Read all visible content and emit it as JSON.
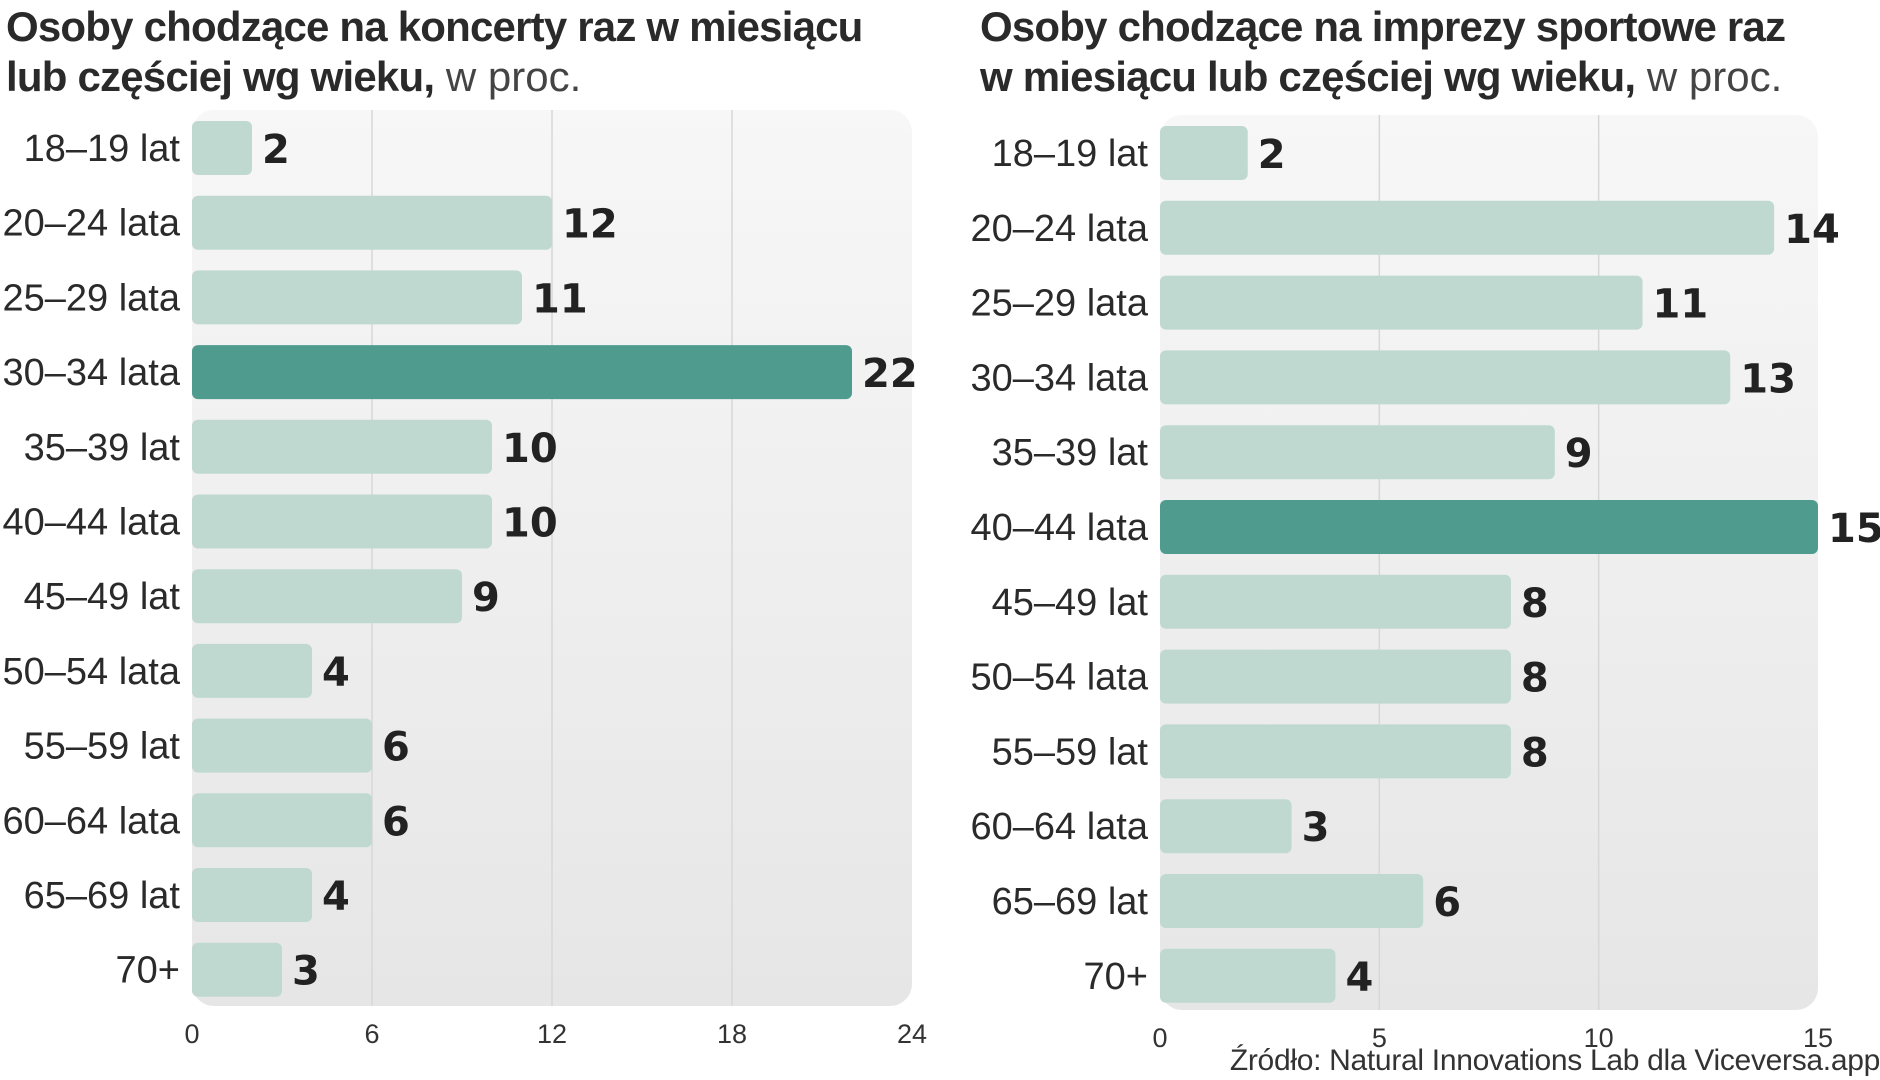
{
  "colors": {
    "bar": "#bfd9d0",
    "bar_highlight": "#4f9c8f",
    "plot_bg_top": "#f7f7f7",
    "plot_bg_bottom": "#e6e6e6",
    "grid": "#d7d7d7"
  },
  "source": "Źródło: Natural Innovations Lab dla Viceversa.app",
  "chart_data": [
    {
      "type": "bar",
      "orientation": "horizontal",
      "title": "Osoby chodzące na koncerty raz w miesiącu lub częściej wg wieku,",
      "title_line1": "Osoby chodzące na koncerty raz w miesiącu",
      "title_line2": "lub częściej wg wieku,",
      "unit": " w proc.",
      "categories": [
        "18–19 lat",
        "20–24 lata",
        "25–29 lata",
        "30–34 lata",
        "35–39 lat",
        "40–44 lata",
        "45–49 lat",
        "50–54 lata",
        "55–59 lat",
        "60–64 lata",
        "65–69 lat",
        "70+"
      ],
      "values": [
        2,
        12,
        11,
        22,
        10,
        10,
        9,
        4,
        6,
        6,
        4,
        3
      ],
      "highlight": "30–34 lata",
      "xlim": [
        0,
        24
      ],
      "xticks": [
        0,
        6,
        12,
        18,
        24
      ],
      "grid": true,
      "legend": "none"
    },
    {
      "type": "bar",
      "orientation": "horizontal",
      "title": "Osoby chodzące na imprezy sportowe raz w miesiącu lub częściej wg wieku,",
      "title_line1": "Osoby chodzące na imprezy sportowe raz",
      "title_line2": "w miesiącu lub częściej wg wieku,",
      "unit": " w proc.",
      "categories": [
        "18–19 lat",
        "20–24 lata",
        "25–29 lata",
        "30–34 lata",
        "35–39 lat",
        "40–44 lata",
        "45–49 lat",
        "50–54 lata",
        "55–59 lat",
        "60–64 lata",
        "65–69 lat",
        "70+"
      ],
      "values": [
        2,
        14,
        11,
        13,
        9,
        15,
        8,
        8,
        8,
        3,
        6,
        4
      ],
      "highlight": "40–44 lata",
      "xlim": [
        0,
        15
      ],
      "xticks": [
        0,
        5,
        10,
        15
      ],
      "grid": true,
      "legend": "none"
    }
  ]
}
